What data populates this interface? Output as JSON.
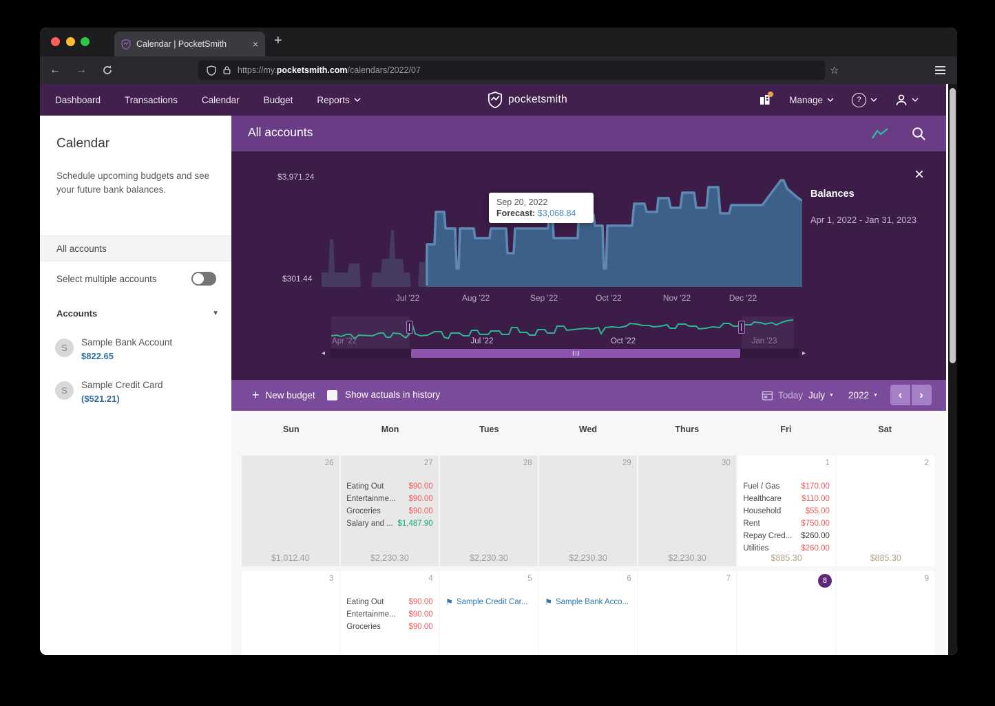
{
  "browser": {
    "tab_title": "Calendar | PocketSmith",
    "url_prefix": "https://my.",
    "url_domain": "pocketsmith.com",
    "url_path": "/calendars/2022/07"
  },
  "nav": {
    "items": [
      "Dashboard",
      "Transactions",
      "Calendar",
      "Budget",
      "Reports"
    ],
    "brand": "pocketsmith",
    "manage_label": "Manage",
    "help_label": "?"
  },
  "sidebar": {
    "title": "Calendar",
    "description": "Schedule upcoming budgets and see your future bank balances.",
    "all_accounts_label": "All accounts",
    "select_multiple_label": "Select multiple accounts",
    "accounts_header": "Accounts",
    "accounts": [
      {
        "initial": "S",
        "name": "Sample Bank Account",
        "balance": "$822.65"
      },
      {
        "initial": "S",
        "name": "Sample Credit Card",
        "balance": "($521.21)"
      }
    ]
  },
  "panel": {
    "title": "All accounts",
    "y_max": "$3,971.24",
    "y_min": "$301.44",
    "x_ticks": [
      "Jul '22",
      "Aug '22",
      "Sep '22",
      "Oct '22",
      "Nov '22",
      "Dec '22"
    ],
    "mini_ticks": [
      "Apr '22",
      "Jul '22",
      "Oct '22",
      "Jan '23"
    ],
    "tooltip": {
      "date": "Sep 20, 2022",
      "label": "Forecast:",
      "value": "$3,068.84"
    },
    "legend_title": "Balances",
    "legend_range": "Apr 1, 2022 - Jan 31, 2023"
  },
  "toolbar": {
    "new_budget_label": "New budget",
    "show_actuals_label": "Show actuals in history",
    "today_label": "Today",
    "month_label": "July",
    "year_label": "2022"
  },
  "calendar": {
    "day_headers": [
      "Sun",
      "Mon",
      "Tues",
      "Wed",
      "Thurs",
      "Fri",
      "Sat"
    ],
    "weeks": [
      [
        {
          "date": "26",
          "past": true,
          "total": "$1,012.40",
          "entries": []
        },
        {
          "date": "27",
          "past": true,
          "total": "$2,230.30",
          "entries": [
            {
              "name": "Eating Out",
              "amount": "$90.00",
              "kind": "expense"
            },
            {
              "name": "Entertainme...",
              "amount": "$90.00",
              "kind": "expense"
            },
            {
              "name": "Groceries",
              "amount": "$90.00",
              "kind": "expense"
            },
            {
              "name": "Salary and ...",
              "amount": "$1,487.90",
              "kind": "income"
            }
          ]
        },
        {
          "date": "28",
          "past": true,
          "total": "$2,230.30",
          "entries": []
        },
        {
          "date": "29",
          "past": true,
          "total": "$2,230.30",
          "entries": []
        },
        {
          "date": "30",
          "past": true,
          "total": "$2,230.30",
          "entries": []
        },
        {
          "date": "1",
          "future": true,
          "total": "$885.30",
          "entries": [
            {
              "name": "Fuel / Gas",
              "amount": "$170.00",
              "kind": "expense"
            },
            {
              "name": "Healthcare",
              "amount": "$110.00",
              "kind": "expense"
            },
            {
              "name": "Household",
              "amount": "$55.00",
              "kind": "expense"
            },
            {
              "name": "Rent",
              "amount": "$750.00",
              "kind": "expense"
            },
            {
              "name": "Repay Cred...",
              "amount": "$260.00",
              "kind": "transfer"
            },
            {
              "name": "Utilities",
              "amount": "$260.00",
              "kind": "expense"
            }
          ]
        },
        {
          "date": "2",
          "future": true,
          "total": "$885.30",
          "entries": []
        }
      ],
      [
        {
          "date": "3",
          "entries": []
        },
        {
          "date": "4",
          "entries": [
            {
              "name": "Eating Out",
              "amount": "$90.00",
              "kind": "expense"
            },
            {
              "name": "Entertainme...",
              "amount": "$90.00",
              "kind": "expense"
            },
            {
              "name": "Groceries",
              "amount": "$90.00",
              "kind": "expense"
            }
          ]
        },
        {
          "date": "5",
          "flag": "Sample Credit Car...",
          "entries": []
        },
        {
          "date": "6",
          "flag": "Sample Bank Acco...",
          "entries": []
        },
        {
          "date": "7",
          "entries": []
        },
        {
          "date": "8",
          "today": true,
          "entries": []
        },
        {
          "date": "9",
          "entries": []
        }
      ]
    ]
  },
  "colors": {
    "nav_purple": "#42204e",
    "header_purple": "#6a3c86",
    "panel_bg": "#3b1d48",
    "toolbar_purple": "#7a4a9b",
    "forecast_fill": "#3d6089",
    "forecast_stroke": "#5d89b2",
    "history_fill": "#463a61",
    "mini_line": "#2ab791",
    "expense_red": "#f05c5c",
    "income_green": "#0ba87e",
    "link_blue": "#3077a9",
    "today_badge": "#5e2a78"
  }
}
